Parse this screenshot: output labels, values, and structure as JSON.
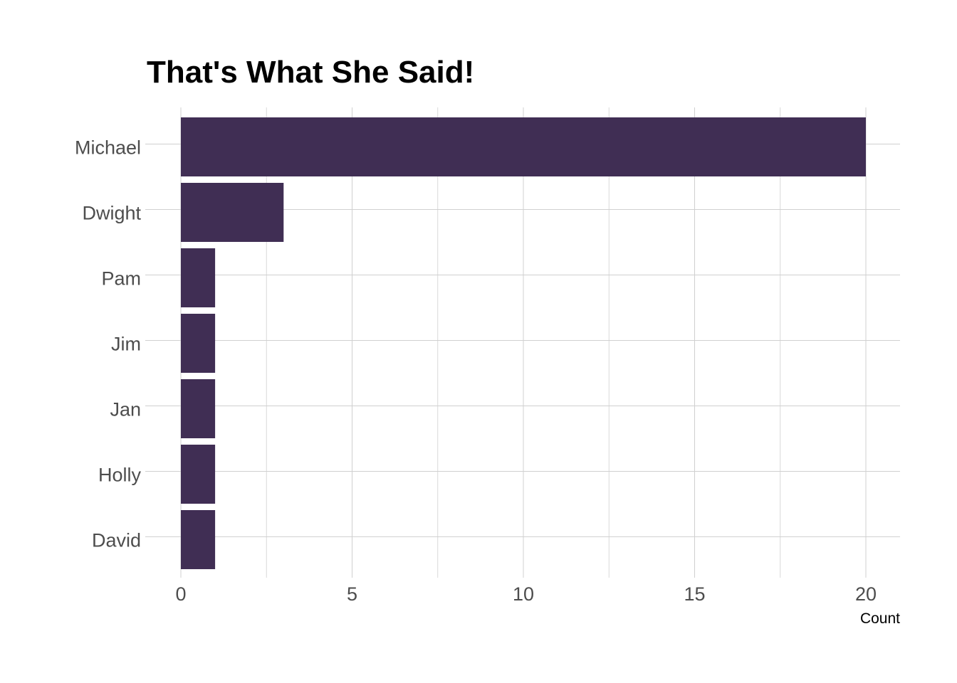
{
  "chart_data": {
    "type": "bar",
    "orientation": "horizontal",
    "title": "That's What She Said!",
    "xlabel": "Count",
    "ylabel": "",
    "categories": [
      "Michael",
      "Dwight",
      "Pam",
      "Jim",
      "Jan",
      "Holly",
      "David"
    ],
    "values": [
      20,
      3,
      1,
      1,
      1,
      1,
      1
    ],
    "xlim": [
      0,
      21
    ],
    "x_ticks": [
      "0",
      "5",
      "10",
      "15",
      "20"
    ],
    "x_tick_values": [
      0,
      5,
      10,
      15,
      20
    ],
    "grid": true,
    "legend": "none",
    "bar_color": "#402e54"
  }
}
